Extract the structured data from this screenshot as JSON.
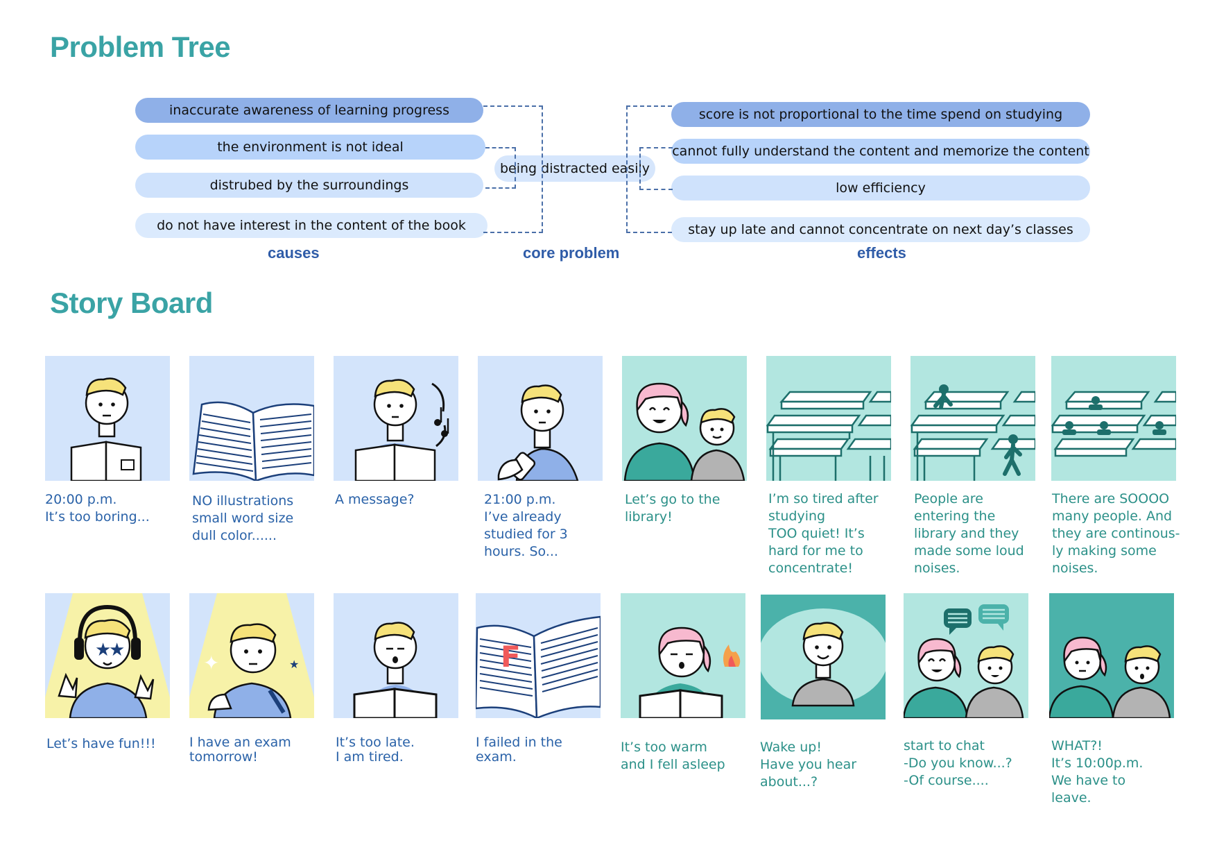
{
  "problem_tree": {
    "title": "Problem Tree",
    "causes": [
      "inaccurate awareness of learning progress",
      "the environment is not ideal",
      "distrubed by the surroundings",
      "do not have interest in the content of the book"
    ],
    "core_problem": "being distracted easily",
    "effects": [
      "score is not proportional to the time spend on studying",
      "cannot fully understand the content and memorize the content",
      "low efficiency",
      "stay up late and cannot concentrate on next day’s classes"
    ],
    "labels": {
      "causes": "causes",
      "core": "core problem",
      "effects": "effects"
    }
  },
  "story_board": {
    "title": "Story Board",
    "panels": [
      {
        "icon": "boy-reading-book-illustration",
        "caption": "20:00 p.m.\nIt’s too boring..."
      },
      {
        "icon": "open-book-dense-text-illustration",
        "caption": "NO illustrations\nsmall word size\ndull color......"
      },
      {
        "icon": "boy-hearing-music-illustration",
        "caption": "A message?"
      },
      {
        "icon": "boy-holding-phone-illustration",
        "caption": "21:00 p.m.\nI’ve already\nstudied for 3\nhours. So..."
      },
      {
        "icon": "girl-and-boy-smiling-illustration",
        "caption": "Let’s go to the\nlibrary!"
      },
      {
        "icon": "empty-library-desks-illustration",
        "caption": "I’m so tired after\nstudying\nTOO quiet! It’s\nhard for me to\nconcentrate!"
      },
      {
        "icon": "people-entering-library-illustration",
        "caption": "People are\nentering the\nlibrary and they\nmade some loud\nnoises."
      },
      {
        "icon": "crowded-library-illustration",
        "caption": "There are SOOOO\nmany people. And\nthey are continous-\nly making some\nnoises."
      },
      {
        "icon": "boy-with-headphones-illustration",
        "caption": "Let’s have fun!!!"
      },
      {
        "icon": "boy-exam-tomorrow-illustration",
        "caption": "I have an exam\ntomorrow!"
      },
      {
        "icon": "boy-tired-reading-illustration",
        "caption": "It’s too late.\nI am tired."
      },
      {
        "icon": "failed-exam-paper-illustration",
        "caption": "I failed in the\nexam.",
        "mark": "F"
      },
      {
        "icon": "girl-asleep-reading-illustration",
        "caption": "It’s too warm\nand I fell asleep"
      },
      {
        "icon": "boy-in-dream-illustration",
        "caption": "Wake up!\nHave you hear\nabout...?"
      },
      {
        "icon": "girl-and-boy-chatting-illustration",
        "caption": "start to chat\n-Do you know...?\n-Of course...."
      },
      {
        "icon": "girl-and-boy-surprised-illustration",
        "caption": "WHAT?!\nIt’s 10:00p.m.\nWe have to\nleave."
      }
    ]
  },
  "colors": {
    "heading": "#3aa3a5",
    "label": "#2f5ca8",
    "caption_blue": "#2a62a8",
    "caption_teal": "#2b9088",
    "panel_blue": "#d3e4fb",
    "panel_teal": "#b2e6e0",
    "hair": "#f6e27a"
  }
}
